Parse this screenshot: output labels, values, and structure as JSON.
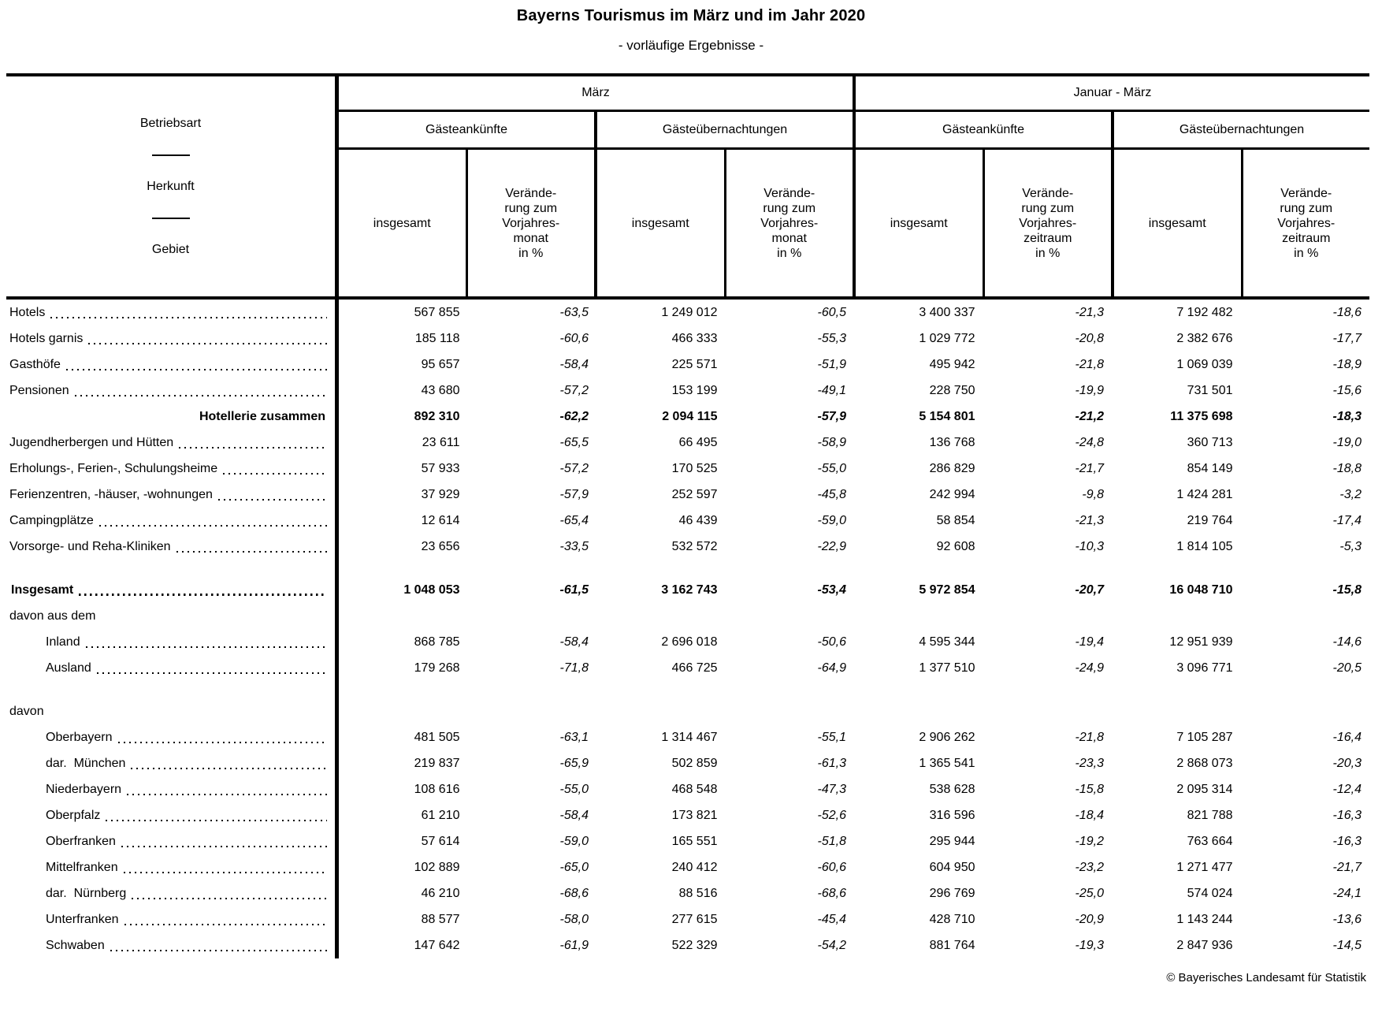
{
  "title": "Bayerns Tourismus im März und im Jahr 2020",
  "subtitle": "- vorläufige Ergebnisse -",
  "footer": "© Bayerisches Landesamt für Statistik",
  "table": {
    "stub": [
      "Betriebsart",
      "Herkunft",
      "Gebiet"
    ],
    "groups": [
      {
        "label": "März",
        "subs": [
          "Gästeankünfte",
          "Gästeübernachtungen"
        ],
        "insgesamt": "insgesamt",
        "change": "Verände-\nrung zum\nVorjahres-\nmonat\nin %"
      },
      {
        "label": "Januar - März",
        "subs": [
          "Gästeankünfte",
          "Gästeübernachtungen"
        ],
        "insgesamt": "insgesamt",
        "change": "Verände-\nrung zum\nVorjahres-\nzeitraum\nin %"
      }
    ],
    "rows": [
      {
        "style": "data",
        "indent": 0,
        "label": "Hotels",
        "values": [
          "567 855",
          "-63,5",
          "1 249 012",
          "-60,5",
          "3 400 337",
          "-21,3",
          "7 192 482",
          "-18,6"
        ]
      },
      {
        "style": "data",
        "indent": 0,
        "label": "Hotels garnis",
        "values": [
          "185 118",
          "-60,6",
          "466 333",
          "-55,3",
          "1 029 772",
          "-20,8",
          "2 382 676",
          "-17,7"
        ]
      },
      {
        "style": "data",
        "indent": 0,
        "label": "Gasthöfe",
        "values": [
          "95 657",
          "-58,4",
          "225 571",
          "-51,9",
          "495 942",
          "-21,8",
          "1 069 039",
          "-18,9"
        ]
      },
      {
        "style": "data",
        "indent": 0,
        "label": "Pensionen",
        "values": [
          "43 680",
          "-57,2",
          "153 199",
          "-49,1",
          "228 750",
          "-19,9",
          "731 501",
          "-15,6"
        ]
      },
      {
        "style": "subtotal",
        "indent": 0,
        "label": "Hotellerie zusammen",
        "values": [
          "892 310",
          "-62,2",
          "2 094 115",
          "-57,9",
          "5 154 801",
          "-21,2",
          "11 375 698",
          "-18,3"
        ]
      },
      {
        "style": "data",
        "indent": 0,
        "label": "Jugendherbergen und Hütten",
        "values": [
          "23 611",
          "-65,5",
          "66 495",
          "-58,9",
          "136 768",
          "-24,8",
          "360 713",
          "-19,0"
        ]
      },
      {
        "style": "data",
        "indent": 0,
        "label": "Erholungs-, Ferien-, Schulungsheime",
        "values": [
          "57 933",
          "-57,2",
          "170 525",
          "-55,0",
          "286 829",
          "-21,7",
          "854 149",
          "-18,8"
        ]
      },
      {
        "style": "data",
        "indent": 0,
        "label": "Ferienzentren, -häuser, -wohnungen",
        "values": [
          "37 929",
          "-57,9",
          "252 597",
          "-45,8",
          "242 994",
          "-9,8",
          "1 424 281",
          "-3,2"
        ]
      },
      {
        "style": "data",
        "indent": 0,
        "label": "Campingplätze",
        "values": [
          "12 614",
          "-65,4",
          "46 439",
          "-59,0",
          "58 854",
          "-21,3",
          "219 764",
          "-17,4"
        ]
      },
      {
        "style": "data",
        "indent": 0,
        "label": "Vorsorge- und Reha-Kliniken",
        "values": [
          "23 656",
          "-33,5",
          "532 572",
          "-22,9",
          "92 608",
          "-10,3",
          "1 814 105",
          "-5,3"
        ]
      },
      {
        "style": "spacer"
      },
      {
        "style": "total",
        "indent": 0,
        "label": "Insgesamt",
        "values": [
          "1 048 053",
          "-61,5",
          "3 162 743",
          "-53,4",
          "5 972 854",
          "-20,7",
          "16 048 710",
          "-15,8"
        ]
      },
      {
        "style": "group",
        "indent": 0,
        "label": "davon aus dem"
      },
      {
        "style": "data",
        "indent": 1,
        "label": "Inland",
        "values": [
          "868 785",
          "-58,4",
          "2 696 018",
          "-50,6",
          "4 595 344",
          "-19,4",
          "12 951 939",
          "-14,6"
        ]
      },
      {
        "style": "data",
        "indent": 1,
        "label": "Ausland",
        "values": [
          "179 268",
          "-71,8",
          "466 725",
          "-64,9",
          "1 377 510",
          "-24,9",
          "3 096 771",
          "-20,5"
        ]
      },
      {
        "style": "spacer"
      },
      {
        "style": "group",
        "indent": 0,
        "label": "davon"
      },
      {
        "style": "data",
        "indent": 1,
        "label": "Oberbayern",
        "values": [
          "481 505",
          "-63,1",
          "1 314 467",
          "-55,1",
          "2 906 262",
          "-21,8",
          "7 105 287",
          "-16,4"
        ]
      },
      {
        "style": "data",
        "indent": 1,
        "label": "dar.  München",
        "values": [
          "219 837",
          "-65,9",
          "502 859",
          "-61,3",
          "1 365 541",
          "-23,3",
          "2 868 073",
          "-20,3"
        ]
      },
      {
        "style": "data",
        "indent": 1,
        "label": "Niederbayern",
        "values": [
          "108 616",
          "-55,0",
          "468 548",
          "-47,3",
          "538 628",
          "-15,8",
          "2 095 314",
          "-12,4"
        ]
      },
      {
        "style": "data",
        "indent": 1,
        "label": "Oberpfalz",
        "values": [
          "61 210",
          "-58,4",
          "173 821",
          "-52,6",
          "316 596",
          "-18,4",
          "821 788",
          "-16,3"
        ]
      },
      {
        "style": "data",
        "indent": 1,
        "label": "Oberfranken",
        "values": [
          "57 614",
          "-59,0",
          "165 551",
          "-51,8",
          "295 944",
          "-19,2",
          "763 664",
          "-16,3"
        ]
      },
      {
        "style": "data",
        "indent": 1,
        "label": "Mittelfranken",
        "values": [
          "102 889",
          "-65,0",
          "240 412",
          "-60,6",
          "604 950",
          "-23,2",
          "1 271 477",
          "-21,7"
        ]
      },
      {
        "style": "data",
        "indent": 1,
        "label": "dar.  Nürnberg",
        "values": [
          "46 210",
          "-68,6",
          "88 516",
          "-68,6",
          "296 769",
          "-25,0",
          "574 024",
          "-24,1"
        ]
      },
      {
        "style": "data",
        "indent": 1,
        "label": "Unterfranken",
        "values": [
          "88 577",
          "-58,0",
          "277 615",
          "-45,4",
          "428 710",
          "-20,9",
          "1 143 244",
          "-13,6"
        ]
      },
      {
        "style": "data",
        "indent": 1,
        "label": "Schwaben",
        "values": [
          "147 642",
          "-61,9",
          "522 329",
          "-54,2",
          "881 764",
          "-19,3",
          "2 847 936",
          "-14,5"
        ]
      }
    ]
  }
}
